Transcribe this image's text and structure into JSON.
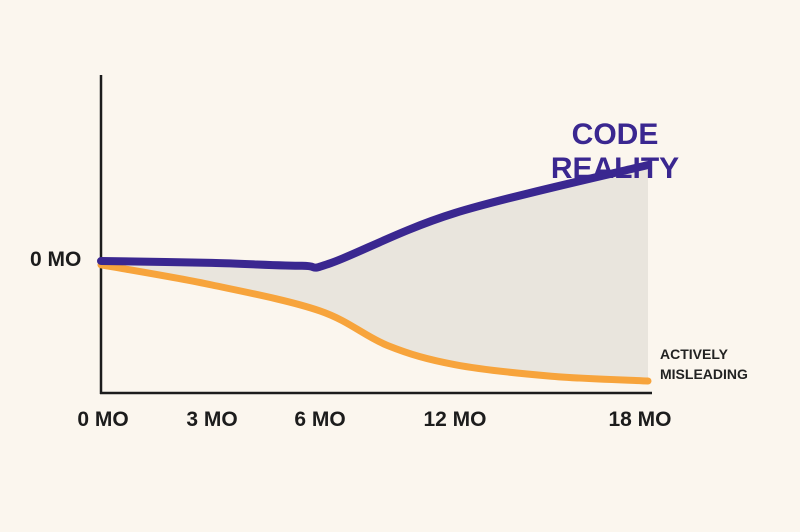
{
  "chart_data": {
    "type": "line",
    "title": "",
    "xlabel": "",
    "ylabel": "",
    "x_tick_labels": [
      "0 MO",
      "3 MO",
      "6 MO",
      "12 MO",
      "18 MO"
    ],
    "x_ticks": [
      0,
      3,
      6,
      12,
      18
    ],
    "y_tick_labels": [
      "0 MO"
    ],
    "ylim": [
      -1.3,
      1.9
    ],
    "grid": false,
    "series": [
      {
        "name": "CODE REALITY",
        "color": "#3a2790",
        "x": [
          0,
          3,
          5.5,
          6.5,
          12,
          18
        ],
        "y": [
          0,
          -0.02,
          -0.05,
          -0.02,
          0.5,
          1.0
        ]
      },
      {
        "name": "ACTIVELY MISLEADING",
        "color": "#f7a43c",
        "x": [
          0,
          3,
          6,
          9,
          12,
          15,
          18
        ],
        "y": [
          -0.04,
          -0.25,
          -0.52,
          -0.88,
          -1.08,
          -1.2,
          -1.25
        ]
      }
    ],
    "annotations": {
      "top": "CODE REALITY",
      "bottom_line1": "ACTIVELY",
      "bottom_line2": "MISLEADING"
    },
    "fill_between_color": "#e9e5dd"
  }
}
